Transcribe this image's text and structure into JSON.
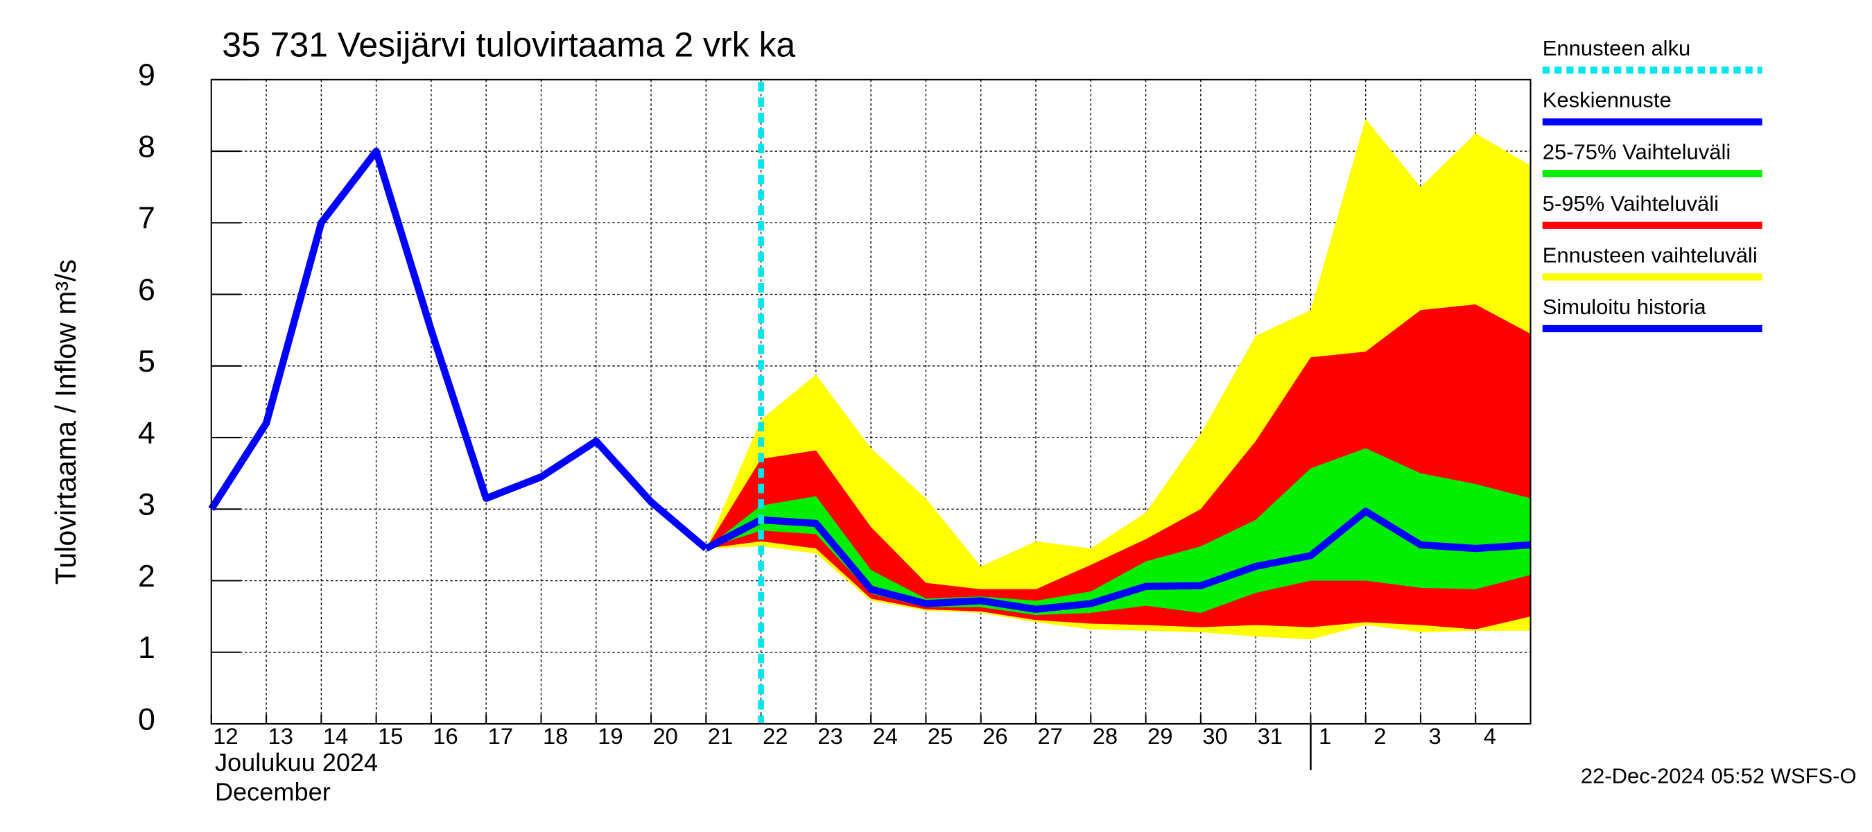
{
  "chart_data": {
    "type": "band-forecast",
    "title": "35 731 Vesijärvi tulovirtaama 2 vrk ka",
    "ylabel": "Tulovirtaama / Inflow    m³/s",
    "xlabel_month": "Joulukuu  2024",
    "xlabel_month_en": "December",
    "footer": "22-Dec-2024 05:52 WSFS-O",
    "categories": [
      "12",
      "13",
      "14",
      "15",
      "16",
      "17",
      "18",
      "19",
      "20",
      "21",
      "22",
      "23",
      "24",
      "25",
      "26",
      "27",
      "28",
      "29",
      "30",
      "31",
      "1",
      "2",
      "3",
      "4",
      null
    ],
    "ylim": [
      0,
      9
    ],
    "yticks": [
      0,
      1,
      2,
      3,
      4,
      5,
      6,
      7,
      8,
      9
    ],
    "grid": true,
    "forecast_start": {
      "name": "Ennusteen alku",
      "color": "#00e5ee",
      "index": 10
    },
    "bands": [
      {
        "name": "Ennusteen vaihteluväli",
        "color": "#ffff00",
        "lower": [
          null,
          null,
          null,
          null,
          null,
          null,
          null,
          null,
          null,
          2.45,
          2.48,
          2.38,
          1.72,
          1.58,
          1.55,
          1.42,
          1.32,
          1.3,
          1.28,
          1.22,
          1.18,
          1.38,
          1.28,
          1.3,
          1.3
        ],
        "upper": [
          null,
          null,
          null,
          null,
          null,
          null,
          null,
          null,
          null,
          2.45,
          4.25,
          4.88,
          3.85,
          3.15,
          2.2,
          2.55,
          2.45,
          2.95,
          4.05,
          5.42,
          5.78,
          8.45,
          7.5,
          8.25,
          7.8
        ]
      },
      {
        "name": "5-95% Vaihteluväli",
        "color": "#ff0000",
        "lower": [
          null,
          null,
          null,
          null,
          null,
          null,
          null,
          null,
          null,
          2.45,
          2.55,
          2.45,
          1.75,
          1.6,
          1.57,
          1.45,
          1.4,
          1.38,
          1.35,
          1.38,
          1.35,
          1.42,
          1.38,
          1.32,
          1.5
        ],
        "upper": [
          null,
          null,
          null,
          null,
          null,
          null,
          null,
          null,
          null,
          2.45,
          3.7,
          3.82,
          2.75,
          1.97,
          1.88,
          1.88,
          2.22,
          2.58,
          3.0,
          3.95,
          5.12,
          5.2,
          5.78,
          5.86,
          5.45
        ]
      },
      {
        "name": "25-75% Vaihteluväli",
        "color": "#00ee00",
        "lower": [
          null,
          null,
          null,
          null,
          null,
          null,
          null,
          null,
          null,
          2.45,
          2.7,
          2.65,
          1.82,
          1.63,
          1.63,
          1.52,
          1.55,
          1.65,
          1.55,
          1.83,
          2.0,
          2.0,
          1.9,
          1.88,
          2.08
        ],
        "upper": [
          null,
          null,
          null,
          null,
          null,
          null,
          null,
          null,
          null,
          2.45,
          3.05,
          3.18,
          2.15,
          1.75,
          1.78,
          1.72,
          1.85,
          2.27,
          2.48,
          2.85,
          3.57,
          3.85,
          3.5,
          3.35,
          3.15
        ]
      }
    ],
    "series": [
      {
        "name": "Keskiennuste",
        "color": "#0000ff",
        "values": [
          null,
          null,
          null,
          null,
          null,
          null,
          null,
          null,
          null,
          2.45,
          2.85,
          2.8,
          1.88,
          1.68,
          1.72,
          1.6,
          1.68,
          1.92,
          1.93,
          2.2,
          2.35,
          2.97,
          2.5,
          2.45,
          2.5
        ]
      },
      {
        "name": "Simuloitu historia",
        "color": "#0000ff",
        "values": [
          3.0,
          4.2,
          7.0,
          8.0,
          5.5,
          3.15,
          3.45,
          3.95,
          3.1,
          2.45,
          null,
          null,
          null,
          null,
          null,
          null,
          null,
          null,
          null,
          null,
          null,
          null,
          null,
          null,
          null
        ]
      }
    ],
    "legend": [
      "Ennusteen alku",
      "Keskiennuste",
      "25-75% Vaihteluväli",
      "5-95% Vaihteluväli",
      "Ennusteen vaihteluväli",
      "Simuloitu historia"
    ]
  }
}
